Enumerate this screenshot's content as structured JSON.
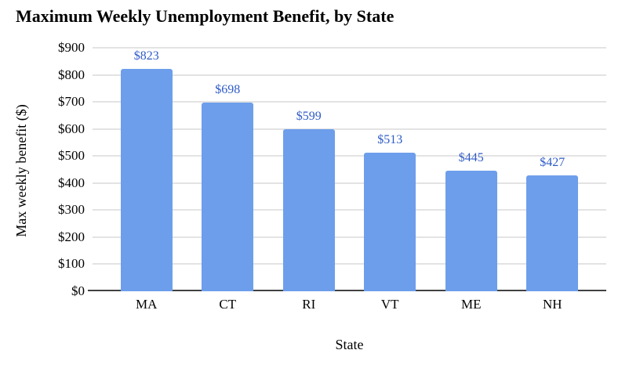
{
  "title": "Maximum Weekly Unemployment Benefit, by State",
  "colors": {
    "bar": "#6d9eeb",
    "data_label": "#2f5bc7",
    "gridline": "#e3e3e3",
    "axis_line": "#424242",
    "text": "#000000",
    "background": "#ffffff"
  },
  "chart_data": {
    "type": "bar",
    "title": "Maximum Weekly Unemployment Benefit, by State",
    "xlabel": "State",
    "ylabel": "Max weekly benefit ($)",
    "categories": [
      "MA",
      "CT",
      "RI",
      "VT",
      "ME",
      "NH"
    ],
    "values": [
      823,
      698,
      599,
      513,
      445,
      427
    ],
    "data_labels": [
      "$823",
      "$698",
      "$599",
      "$513",
      "$445",
      "$427"
    ],
    "ylim": [
      0,
      900
    ],
    "ytick_step": 100,
    "yticks": [
      "$0",
      "$100",
      "$200",
      "$300",
      "$400",
      "$500",
      "$600",
      "$700",
      "$800",
      "$900"
    ],
    "grid": true,
    "legend": "none"
  }
}
